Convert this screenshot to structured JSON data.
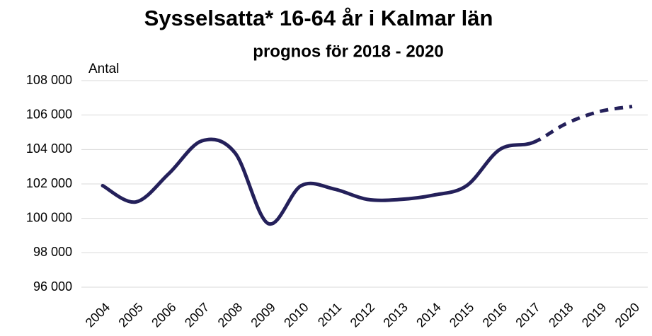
{
  "chart_data": {
    "type": "line",
    "title": "Sysselsatta* 16-64 år i Kalmar län",
    "subtitle": "prognos för 2018 - 2020",
    "y_label": "Antal",
    "categories": [
      "2004",
      "2005",
      "2006",
      "2007",
      "2008",
      "2009",
      "2010",
      "2011",
      "2012",
      "2013",
      "2014",
      "2015",
      "2016",
      "2017",
      "2018",
      "2019",
      "2020"
    ],
    "values": [
      101900,
      100950,
      102600,
      104500,
      103800,
      99700,
      101900,
      101700,
      101100,
      101100,
      101350,
      101900,
      104000,
      104400,
      105500,
      106200,
      106500
    ],
    "forecast_from": "2017",
    "color": "#24205a",
    "ylim": [
      96000,
      108000
    ],
    "yticks": [
      {
        "value": 96000,
        "label": "96 000"
      },
      {
        "value": 98000,
        "label": "98 000"
      },
      {
        "value": 100000,
        "label": "100 000"
      },
      {
        "value": 102000,
        "label": "102 000"
      },
      {
        "value": 104000,
        "label": "104 000"
      },
      {
        "value": 106000,
        "label": "106 000"
      },
      {
        "value": 108000,
        "label": "108 000"
      }
    ],
    "grid": true
  }
}
